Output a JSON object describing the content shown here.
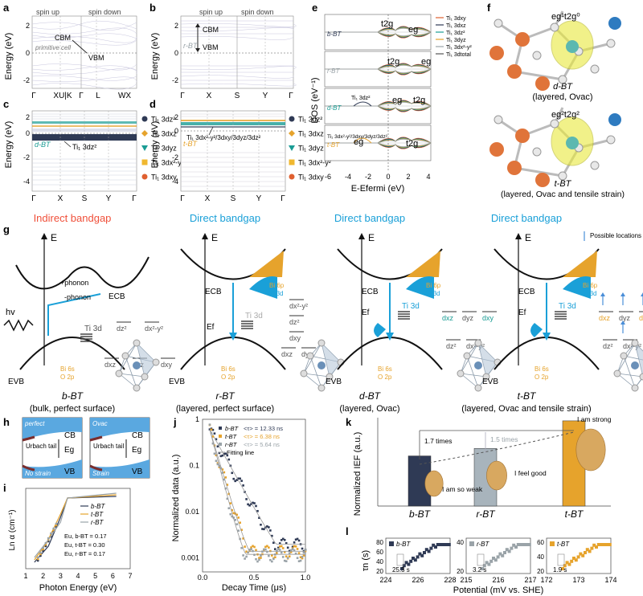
{
  "colors": {
    "navy": "#2f3a55",
    "orange": "#e6a32c",
    "teal": "#1a9c94",
    "cyan": "#1aa0d8",
    "red": "#f0503a",
    "gray": "#9aa3a8",
    "brown": "#7a3b2e",
    "blue": "#4a8ed8"
  },
  "panel_labels": {
    "a": "a",
    "b": "b",
    "c": "c",
    "d": "d",
    "e": "e",
    "f": "f",
    "g": "g",
    "h": "h",
    "i": "i",
    "j": "j",
    "k": "k",
    "l": "l"
  },
  "panel_a": {
    "ylabel": "Energy (eV)",
    "yticks": [
      "2",
      "0",
      "-2"
    ],
    "xticks": [
      "Γ",
      "XU|K",
      "Γ",
      "L",
      "WX"
    ],
    "spin_up": "spin up",
    "spin_down": "spin down",
    "cbm": "CBM",
    "vbm": "VBM",
    "note": "primitive cell"
  },
  "panel_b": {
    "ylabel": "Energy (eV)",
    "yticks": [
      "2",
      "0",
      "-2"
    ],
    "xticks": [
      "Γ",
      "X",
      "S",
      "Y",
      "Γ"
    ],
    "spin_up": "spin up",
    "spin_down": "spin down",
    "cbm": "CBM",
    "vbm": "VBM",
    "tag": "r-BT"
  },
  "panel_c": {
    "ylabel": "Energy (eV)",
    "yticks": [
      "2",
      "0",
      "-2",
      "-4"
    ],
    "xticks": [
      "Γ",
      "X",
      "S",
      "Y",
      "Γ"
    ],
    "tag": "d-BT",
    "annotation": "Ti₁ 3dz²",
    "legend": [
      {
        "label": "Ti₁ 3dz²",
        "color": "#2f3a55",
        "marker": "circle"
      },
      {
        "label": "Ti₁ 3dxz",
        "color": "#e6a32c",
        "marker": "diamond"
      },
      {
        "label": "Ti₁ 3dyz",
        "color": "#1a9c94",
        "marker": "triangle"
      },
      {
        "label": "Ti₁ 3dx²-y²",
        "color": "#f0b830",
        "marker": "square"
      },
      {
        "label": "Ti₁ 3dxy",
        "color": "#e06030",
        "marker": "circle"
      }
    ]
  },
  "panel_d": {
    "ylabel": "Energy (eV)",
    "yticks": [
      "2",
      "0",
      "-2",
      "-4"
    ],
    "xticks": [
      "Γ",
      "X",
      "S",
      "Y",
      "Γ"
    ],
    "tag": "t-BT",
    "annotation": "Ti₁ 3dx²-y²/3dxy/3dyz/3dz²",
    "legend": [
      {
        "label": "Ti₁ 3dz²",
        "color": "#2f3a55",
        "marker": "circle"
      },
      {
        "label": "Ti₁ 3dxz",
        "color": "#e6a32c",
        "marker": "diamond"
      },
      {
        "label": "Ti₁ 3dyz",
        "color": "#1a9c94",
        "marker": "triangle"
      },
      {
        "label": "Ti₁ 3dx²-y²",
        "color": "#f0b830",
        "marker": "square"
      },
      {
        "label": "Ti₁ 3dxy",
        "color": "#e06030",
        "marker": "circle"
      }
    ]
  },
  "panel_e": {
    "ylabel": "DOS (eV⁻¹)",
    "xlabel": "E-Efermi (eV)",
    "xticks": [
      "-6",
      "-4",
      "-2",
      "0",
      "2",
      "4"
    ],
    "subpanels": [
      "b-BT",
      "r-BT",
      "d-BT",
      "t-BT"
    ],
    "labels": {
      "t2g": "t2g",
      "eg": "eg",
      "ti_dz2": "Ti₁ 3dz²",
      "ti_mix": "Ti₁ 3dx²-y²/3dxy/3dyz/3dz²"
    },
    "legend": [
      "Ti₁ 3dxy",
      "Ti₁ 3dxz",
      "Ti₁ 3dz²",
      "Ti₁ 3dyz",
      "Ti₁ 3dx²-y²",
      "Ti₁ 3dtotal"
    ]
  },
  "panel_f": {
    "config_d": "eg¹t2g⁰",
    "config_t": "eg²t2g²",
    "cap_d1": "d-BT",
    "cap_d2": "(layered, Ovac)",
    "cap_t1": "t-BT",
    "cap_t2": "(layered, Ovac and tensile strain)"
  },
  "panel_g": {
    "titles": [
      "Indirect bandgap",
      "Direct bandgap",
      "Direct bandgap",
      "Direct bandgap"
    ],
    "E": "E",
    "hv": "hv",
    "phonon_plus": "+phonon",
    "phonon_minus": "-phonon",
    "ecb": "ECB",
    "evb": "EVB",
    "ef": "Ef",
    "bi6p": "Bi 6p",
    "ti3d": "Ti 3d",
    "bi6s": "Bi 6s",
    "o2p": "O 2p",
    "orbitals": {
      "dz2": "dz²",
      "dx2y2": "dx²-y²",
      "dxz": "dxz",
      "dyz": "dyz",
      "dxy": "dxy"
    },
    "note": "Possible locations for more spin electrons",
    "captions": [
      [
        "b-BT",
        "(bulk, perfect surface)"
      ],
      [
        "r-BT",
        "(layered, perfect surface)"
      ],
      [
        "d-BT",
        "(layered, Ovac)"
      ],
      [
        "t-BT",
        "(layered, Ovac and tensile strain)"
      ]
    ]
  },
  "panel_h": {
    "left_top": "perfect",
    "left_bottom": "No strain",
    "right_top": "Ovac",
    "right_bottom": "Strain",
    "cb": "CB",
    "vb": "VB",
    "eg": "Eg",
    "urbach": "Urbach tail"
  },
  "panel_i": {
    "ylabel": "Ln α (cm⁻¹)",
    "xlabel": "Photon Energy (eV)",
    "xticks": [
      "1",
      "2",
      "3",
      "4",
      "5",
      "6",
      "7"
    ],
    "legend": [
      "b-BT",
      "t-BT",
      "r-BT"
    ],
    "eu": [
      "Eu, b-BT = 0.17",
      "Eu, t-BT = 0.30",
      "Eu, r-BT = 0.17"
    ]
  },
  "panel_j": {
    "ylabel": "Normalized data (a.u.)",
    "xlabel": "Decay Time (μs)",
    "yticks": [
      "1",
      "0.1",
      "0.01",
      "0.001"
    ],
    "xticks": [
      "0.0",
      "0.5",
      "1.0"
    ],
    "legend": [
      {
        "name": "b-BT",
        "tau": "<τ> = 12.33 ns",
        "color": "#2f3a55"
      },
      {
        "name": "t-BT",
        "tau": "<τ> = 6.38 ns",
        "color": "#e6a32c"
      },
      {
        "name": "r-BT",
        "tau": "<τ> = 5.64 ns",
        "color": "#9aa3a8"
      }
    ],
    "fit": "Fitting line"
  },
  "panel_k": {
    "ylabel": "Normalized IEF (a.u.)",
    "bars": [
      "b-BT",
      "r-BT",
      "t-BT"
    ],
    "values": [
      1.0,
      1.15,
      1.7
    ],
    "t17": "1.7 times",
    "t15": "1.5 times",
    "quotes": [
      "I am so weak",
      "I feel good",
      "I am strong"
    ]
  },
  "panel_l": {
    "ylabel": "τn (s)",
    "xlabel": "Potential (mV vs. SHE)",
    "subplots": [
      {
        "name": "b-BT",
        "xticks": [
          "224",
          "226",
          "228"
        ],
        "yticks": [
          "80",
          "60",
          "40",
          "20"
        ],
        "annot": "25.3 s",
        "color": "#2f3a55"
      },
      {
        "name": "r-BT",
        "xticks": [
          "215",
          "216",
          "217"
        ],
        "yticks": [
          "40",
          "20"
        ],
        "annot": "3.2 s",
        "color": "#9aa3a8"
      },
      {
        "name": "t-BT",
        "xticks": [
          "172",
          "173",
          "174"
        ],
        "yticks": [
          "60",
          "40",
          "20"
        ],
        "annot": "1.9 s",
        "color": "#e6a32c"
      }
    ]
  }
}
